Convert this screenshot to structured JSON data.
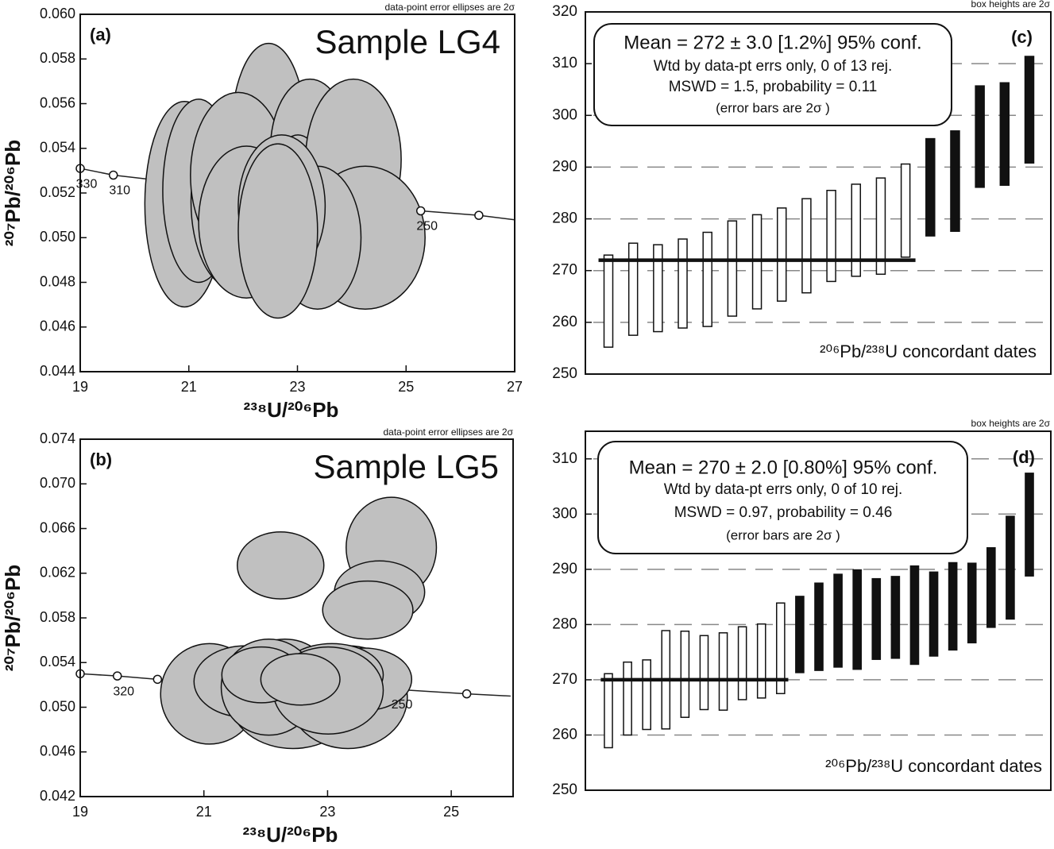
{
  "chart_data": [
    {
      "type": "ellipse",
      "panel_label": "(a)",
      "title": "Sample LG4",
      "note": "data-point error ellipses are 2σ",
      "x_label": "²³⁸U/²⁰⁶Pb",
      "y_label": "²⁰⁷Pb/²⁰⁶Pb",
      "xlim": [
        19,
        27
      ],
      "ylim": [
        0.044,
        0.06
      ],
      "xticks": [
        19,
        21,
        23,
        25,
        27
      ],
      "yticks": [
        0.044,
        0.046,
        0.048,
        {
          "value": 0.05,
          "label": "0.050"
        },
        0.052,
        0.054,
        0.056,
        0.058,
        {
          "value": 0.06,
          "label": "0.060"
        }
      ],
      "color": "#c0c0c0",
      "x": [
        20.92,
        21.18,
        21.84,
        22.47,
        21.91,
        23.23,
        23.01,
        24.03,
        24.25,
        23.37,
        22.06,
        22.71,
        22.64
      ],
      "y": [
        0.0515,
        0.0521,
        0.0516,
        0.0544,
        0.0528,
        0.0539,
        0.0512,
        0.0535,
        0.05,
        0.05,
        0.0507,
        0.0514,
        0.0503
      ],
      "x_err": [
        0.73,
        0.66,
        0.8,
        0.7,
        0.88,
        0.73,
        0.58,
        0.88,
        1.1,
        0.8,
        0.88,
        0.8,
        0.73
      ],
      "y_err": [
        0.0046,
        0.0041,
        0.0039,
        0.0043,
        0.0037,
        0.0032,
        0.0034,
        0.0036,
        0.0032,
        0.0032,
        0.0034,
        0.0032,
        0.0039
      ],
      "concordia": {
        "x": [
          19,
          19.61,
          25.27,
          26.34,
          27
        ],
        "y": [
          0.0531,
          0.0528,
          0.0512,
          0.051,
          0.0508
        ],
        "markers": [
          true,
          true,
          true,
          true,
          false
        ],
        "labels": [
          "330",
          "310",
          "250",
          null,
          null
        ]
      }
    },
    {
      "type": "ellipse",
      "panel_label": "(b)",
      "title": "Sample LG5",
      "note": "data-point error ellipses are 2σ",
      "x_label": "²³⁸U/²⁰⁶Pb",
      "y_label": "²⁰⁷Pb/²⁰⁶Pb",
      "xlim": [
        19,
        26
      ],
      "ylim": [
        0.042,
        0.074
      ],
      "xticks": [
        19,
        21,
        23,
        25
      ],
      "yticks": [
        0.042,
        0.046,
        {
          "value": 0.05,
          "label": "0.050"
        },
        0.054,
        0.058,
        0.062,
        0.066,
        {
          "value": 0.07,
          "label": "0.070"
        },
        0.074
      ],
      "color": "#c0c0c0",
      "x": [
        22.24,
        24.03,
        23.84,
        23.65,
        21.09,
        22.44,
        21.67,
        23.33,
        23.59,
        22.31,
        23.07,
        22.05,
        23.01,
        21.93,
        22.56
      ],
      "y": [
        0.0627,
        0.0643,
        0.0603,
        0.0587,
        0.0512,
        0.0507,
        0.0523,
        0.0509,
        0.0525,
        0.0529,
        0.0529,
        0.0518,
        0.0515,
        0.0529,
        0.0525
      ],
      "x_err": [
        0.7,
        0.73,
        0.73,
        0.73,
        0.79,
        1.02,
        0.83,
        0.96,
        0.77,
        0.7,
        0.83,
        0.77,
        0.89,
        0.64,
        0.64
      ],
      "y_err": [
        0.003,
        0.0045,
        0.0028,
        0.0026,
        0.0045,
        0.0044,
        0.0032,
        0.0046,
        0.0028,
        0.0032,
        0.0028,
        0.0043,
        0.0039,
        0.0025,
        0.0023
      ],
      "concordia": {
        "x": [
          19,
          19.6,
          20.25,
          24.1,
          25.25,
          25.96
        ],
        "y": [
          0.053,
          0.0528,
          0.0525,
          0.0516,
          0.0512,
          0.051
        ],
        "markers": [
          true,
          true,
          true,
          false,
          true,
          false
        ],
        "labels": [
          null,
          "320",
          null,
          "250",
          null,
          null
        ]
      }
    },
    {
      "type": "weighted-mean",
      "panel_label": "(c)",
      "note": "box heights are 2σ",
      "caption": "²⁰⁶Pb/²³⁸U concordant dates",
      "summary": [
        "Mean = 272 ± 3.0  [1.2%]  95% conf.",
        "Wtd by data-pt errs only, 0 of 13 rej.",
        "MSWD = 1.5, probability = 0.11",
        "(error bars are 2σ )"
      ],
      "ylim": [
        250,
        320
      ],
      "yticks": [
        250,
        260,
        270,
        280,
        290,
        300,
        310,
        320
      ],
      "grid": true,
      "values": [
        264.1,
        266.4,
        266.6,
        267.5,
        268.3,
        270.4,
        271.7,
        273.1,
        274.8,
        276.7,
        277.8,
        278.6,
        281.6,
        286.1,
        287.3,
        295.9,
        296.4,
        301.1
      ],
      "errors": [
        8.9,
        8.9,
        8.4,
        8.6,
        9.1,
        9.2,
        9.1,
        9.0,
        9.1,
        8.8,
        8.9,
        9.3,
        9.0,
        9.4,
        9.7,
        9.8,
        9.9,
        10.3
      ],
      "fills": [
        "#ffffff",
        "#ffffff",
        "#ffffff",
        "#ffffff",
        "#ffffff",
        "#ffffff",
        "#ffffff",
        "#ffffff",
        "#ffffff",
        "#ffffff",
        "#ffffff",
        "#ffffff",
        "#ffffff",
        "#111111",
        "#111111",
        "#111111",
        "#111111",
        "#111111"
      ],
      "mean": 272,
      "mean_color": "#111111"
    },
    {
      "type": "weighted-mean",
      "panel_label": "(d)",
      "note": "box heights are 2σ",
      "caption": "²⁰⁶Pb/²³⁸U concordant dates",
      "summary": [
        "Mean = 270 ± 2.0  [0.80%]  95% conf.",
        "Wtd by data-pt errs only, 0 of 10 rej.",
        "MSWD = 0.97, probability = 0.46",
        "(error bars are 2σ )"
      ],
      "ylim": [
        250,
        315
      ],
      "yticks": [
        250,
        260,
        270,
        280,
        290,
        300,
        310
      ],
      "grid": true,
      "values": [
        264.4,
        266.6,
        267.3,
        270.0,
        271.0,
        271.3,
        271.5,
        273.0,
        273.4,
        275.7,
        278.2,
        279.6,
        280.7,
        280.9,
        281.0,
        281.3,
        281.7,
        281.9,
        283.3,
        283.9,
        286.7,
        290.3,
        298.1
      ],
      "errors": [
        6.7,
        6.6,
        6.3,
        8.9,
        7.8,
        6.7,
        7.0,
        6.6,
        6.7,
        8.2,
        6.9,
        7.9,
        8.4,
        9.0,
        7.3,
        7.4,
        8.9,
        7.6,
        7.9,
        7.2,
        7.2,
        9.3,
        9.3
      ],
      "fills": [
        "#ffffff",
        "#ffffff",
        "#ffffff",
        "#ffffff",
        "#ffffff",
        "#ffffff",
        "#ffffff",
        "#ffffff",
        "#ffffff",
        "#ffffff",
        "#111111",
        "#111111",
        "#111111",
        "#111111",
        "#111111",
        "#111111",
        "#111111",
        "#111111",
        "#111111",
        "#111111",
        "#111111",
        "#111111",
        "#111111"
      ],
      "mean": 270,
      "mean_color": "#111111"
    }
  ]
}
